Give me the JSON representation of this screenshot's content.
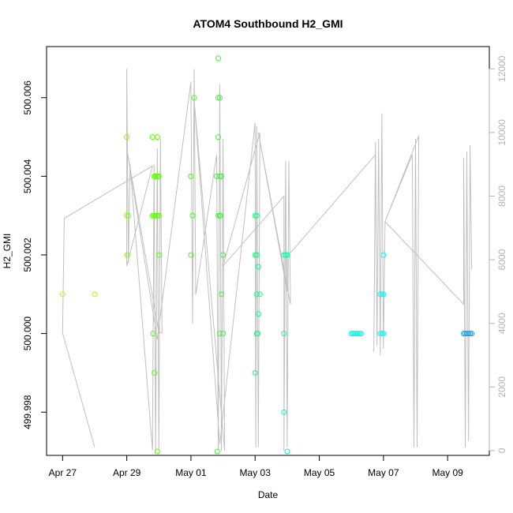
{
  "chart_data": {
    "type": "scatter",
    "title": "ATOM4 Southbound H2_GMI",
    "xlabel": "Date",
    "ylabel": "H2_GMI",
    "x_ticks": [
      "Apr 27",
      "Apr 29",
      "May 01",
      "May 03",
      "May 05",
      "May 07",
      "May 09"
    ],
    "x_tick_days": [
      0,
      2,
      4,
      6,
      8,
      10,
      12
    ],
    "xlim_days": [
      -0.5,
      13.3
    ],
    "y_ticks": [
      499.998,
      500.0,
      500.002,
      500.004,
      500.006
    ],
    "ylim": [
      499.9969,
      500.0073
    ],
    "y2_ticks": [
      0,
      2000,
      4000,
      6000,
      8000,
      10000,
      12000
    ],
    "y2lim": [
      -150,
      12700
    ],
    "grid": false,
    "series": [
      {
        "points": [
          {
            "x": 0.0,
            "y": 500.001,
            "color": "#b5ff00"
          },
          {
            "x": 1.0,
            "y": 500.001,
            "color": "#a8ff00"
          },
          {
            "x": 2.0,
            "y": 500.005,
            "color": "#7dff00"
          },
          {
            "x": 2.0,
            "y": 500.003,
            "color": "#7dff00"
          },
          {
            "x": 2.05,
            "y": 500.003,
            "color": "#7dff00"
          },
          {
            "x": 2.02,
            "y": 500.002,
            "color": "#7dff00"
          },
          {
            "x": 2.8,
            "y": 500.005,
            "color": "#5aff00"
          },
          {
            "x": 2.95,
            "y": 500.005,
            "color": "#5aff00"
          },
          {
            "x": 2.85,
            "y": 500.004,
            "color": "#5aff00"
          },
          {
            "x": 2.9,
            "y": 500.004,
            "color": "#5aff00"
          },
          {
            "x": 2.95,
            "y": 500.004,
            "color": "#5aff00"
          },
          {
            "x": 3.0,
            "y": 500.004,
            "color": "#5aff00"
          },
          {
            "x": 2.8,
            "y": 500.003,
            "color": "#5aff00"
          },
          {
            "x": 2.85,
            "y": 500.003,
            "color": "#5aff00"
          },
          {
            "x": 2.9,
            "y": 500.003,
            "color": "#5aff00"
          },
          {
            "x": 2.95,
            "y": 500.003,
            "color": "#5aff00"
          },
          {
            "x": 3.0,
            "y": 500.003,
            "color": "#5aff00"
          },
          {
            "x": 3.0,
            "y": 500.002,
            "color": "#5aff00"
          },
          {
            "x": 2.82,
            "y": 500.0,
            "color": "#5aff00"
          },
          {
            "x": 2.86,
            "y": 499.999,
            "color": "#5aff00"
          },
          {
            "x": 2.95,
            "y": 499.997,
            "color": "#5aff00"
          },
          {
            "x": 4.0,
            "y": 500.004,
            "color": "#3dff10"
          },
          {
            "x": 4.05,
            "y": 500.003,
            "color": "#3dff10"
          },
          {
            "x": 4.0,
            "y": 500.002,
            "color": "#3dff10"
          },
          {
            "x": 4.1,
            "y": 500.006,
            "color": "#3dff10"
          },
          {
            "x": 4.85,
            "y": 500.007,
            "color": "#30ff30"
          },
          {
            "x": 4.85,
            "y": 500.006,
            "color": "#30ff30"
          },
          {
            "x": 4.9,
            "y": 500.006,
            "color": "#30ff30"
          },
          {
            "x": 4.85,
            "y": 500.005,
            "color": "#30ff30"
          },
          {
            "x": 4.8,
            "y": 500.004,
            "color": "#30ff30"
          },
          {
            "x": 4.9,
            "y": 500.004,
            "color": "#30ff30"
          },
          {
            "x": 4.95,
            "y": 500.004,
            "color": "#30ff30"
          },
          {
            "x": 4.85,
            "y": 500.003,
            "color": "#30ff30"
          },
          {
            "x": 4.9,
            "y": 500.003,
            "color": "#30ff30"
          },
          {
            "x": 4.92,
            "y": 500.003,
            "color": "#30ff30"
          },
          {
            "x": 5.0,
            "y": 500.002,
            "color": "#30ff30"
          },
          {
            "x": 4.95,
            "y": 500.001,
            "color": "#30ff30"
          },
          {
            "x": 4.9,
            "y": 500.0,
            "color": "#30ff30"
          },
          {
            "x": 5.0,
            "y": 500.0,
            "color": "#30ff30"
          },
          {
            "x": 4.82,
            "y": 499.997,
            "color": "#30ff30"
          },
          {
            "x": 6.0,
            "y": 500.003,
            "color": "#10ff80"
          },
          {
            "x": 6.05,
            "y": 500.003,
            "color": "#10ff80"
          },
          {
            "x": 6.0,
            "y": 500.002,
            "color": "#10ff80"
          },
          {
            "x": 6.05,
            "y": 500.002,
            "color": "#10ff80"
          },
          {
            "x": 6.1,
            "y": 500.0017,
            "color": "#10ff80"
          },
          {
            "x": 6.05,
            "y": 500.001,
            "color": "#10ff80"
          },
          {
            "x": 6.15,
            "y": 500.001,
            "color": "#10ff80"
          },
          {
            "x": 6.1,
            "y": 500.0005,
            "color": "#10ff80"
          },
          {
            "x": 6.05,
            "y": 500.0,
            "color": "#10ff80"
          },
          {
            "x": 6.08,
            "y": 500.0,
            "color": "#10ff80"
          },
          {
            "x": 6.0,
            "y": 499.999,
            "color": "#10ff80"
          },
          {
            "x": 6.9,
            "y": 500.002,
            "color": "#00ffb0"
          },
          {
            "x": 6.95,
            "y": 500.002,
            "color": "#00ffb0"
          },
          {
            "x": 7.0,
            "y": 500.002,
            "color": "#00ffb0"
          },
          {
            "x": 6.9,
            "y": 500.0,
            "color": "#00ffb0"
          },
          {
            "x": 6.9,
            "y": 499.998,
            "color": "#00ffb0"
          },
          {
            "x": 7.0,
            "y": 499.997,
            "color": "#00ffb0"
          },
          {
            "x": 9.0,
            "y": 500.0,
            "color": "#00ffe0"
          },
          {
            "x": 9.05,
            "y": 500.0,
            "color": "#00ffe0"
          },
          {
            "x": 9.1,
            "y": 500.0,
            "color": "#00ffe0"
          },
          {
            "x": 9.15,
            "y": 500.0,
            "color": "#00ffe0"
          },
          {
            "x": 9.2,
            "y": 500.0,
            "color": "#00ffe0"
          },
          {
            "x": 9.25,
            "y": 500.0,
            "color": "#00ffe0"
          },
          {
            "x": 9.3,
            "y": 500.0,
            "color": "#00ffe0"
          },
          {
            "x": 9.9,
            "y": 500.001,
            "color": "#00ffff"
          },
          {
            "x": 9.95,
            "y": 500.001,
            "color": "#00ffff"
          },
          {
            "x": 10.0,
            "y": 500.001,
            "color": "#00ffff"
          },
          {
            "x": 9.9,
            "y": 500.0,
            "color": "#00ffff"
          },
          {
            "x": 9.95,
            "y": 500.0,
            "color": "#00ffff"
          },
          {
            "x": 10.0,
            "y": 500.0,
            "color": "#00ffff"
          },
          {
            "x": 10.0,
            "y": 500.002,
            "color": "#00ffff"
          },
          {
            "x": 12.5,
            "y": 500.0,
            "color": "#1aa0ff"
          },
          {
            "x": 12.55,
            "y": 500.0,
            "color": "#1aa0ff"
          },
          {
            "x": 12.6,
            "y": 500.0,
            "color": "#1aa0ff"
          },
          {
            "x": 12.65,
            "y": 500.0,
            "color": "#1aa0ff"
          },
          {
            "x": 12.7,
            "y": 500.0,
            "color": "#1aa0ff"
          },
          {
            "x": 12.75,
            "y": 500.0,
            "color": "#1aa0ff"
          }
        ]
      },
      {
        "color": "#c0c0c0",
        "axis": "right",
        "points": [
          [
            0.0,
            3700
          ],
          [
            0.05,
            7300
          ],
          [
            2.8,
            8950
          ],
          [
            2.0,
            5800
          ],
          [
            2.0,
            12000
          ],
          [
            2.05,
            5900
          ],
          [
            2.1,
            9000
          ],
          [
            2.8,
            0
          ],
          [
            2.85,
            9000
          ],
          [
            2.9,
            0
          ],
          [
            2.95,
            9500
          ],
          [
            3.0,
            0
          ],
          [
            3.05,
            9800
          ],
          [
            3.1,
            3700
          ],
          [
            3.0,
            3700
          ],
          [
            2.0,
            9500
          ],
          [
            2.95,
            3500
          ],
          [
            4.0,
            11600
          ],
          [
            4.05,
            4000
          ],
          [
            4.1,
            12000
          ],
          [
            4.15,
            4900
          ],
          [
            4.8,
            9300
          ],
          [
            4.85,
            0
          ],
          [
            4.9,
            11500
          ],
          [
            4.95,
            0
          ],
          [
            5.0,
            9800
          ],
          [
            5.05,
            0
          ],
          [
            4.1,
            11000
          ],
          [
            4.9,
            200
          ],
          [
            6.0,
            10300
          ],
          [
            6.02,
            100
          ],
          [
            6.05,
            10200
          ],
          [
            6.1,
            100
          ],
          [
            6.15,
            10000
          ],
          [
            5.0,
            5800
          ],
          [
            6.9,
            8000
          ],
          [
            6.9,
            0
          ],
          [
            6.95,
            9100
          ],
          [
            7.0,
            100
          ],
          [
            7.05,
            9100
          ],
          [
            7.1,
            4600
          ],
          [
            6.1,
            10000
          ],
          [
            7.0,
            5000
          ],
          [
            7.0,
            6100
          ],
          [
            9.75,
            9300
          ],
          [
            9.7,
            3100
          ],
          [
            9.75,
            9700
          ],
          [
            9.8,
            3300
          ],
          [
            9.85,
            9800
          ],
          [
            9.9,
            3000
          ],
          [
            9.95,
            10600
          ],
          [
            10.0,
            3200
          ],
          [
            10.05,
            7200
          ],
          [
            10.9,
            9300
          ],
          [
            10.95,
            100
          ],
          [
            11.0,
            9800
          ],
          [
            11.05,
            100
          ],
          [
            11.1,
            9900
          ],
          [
            10.05,
            7200
          ],
          [
            12.5,
            4600
          ],
          [
            12.5,
            9200
          ],
          [
            12.55,
            100
          ],
          [
            12.6,
            9400
          ],
          [
            12.65,
            300
          ],
          [
            12.7,
            9600
          ],
          [
            12.75,
            5700
          ]
        ]
      },
      {
        "color": "#c0c0c0",
        "axis": "right",
        "points": [
          [
            0.0,
            3700
          ],
          [
            1.0,
            100
          ]
        ]
      }
    ]
  }
}
